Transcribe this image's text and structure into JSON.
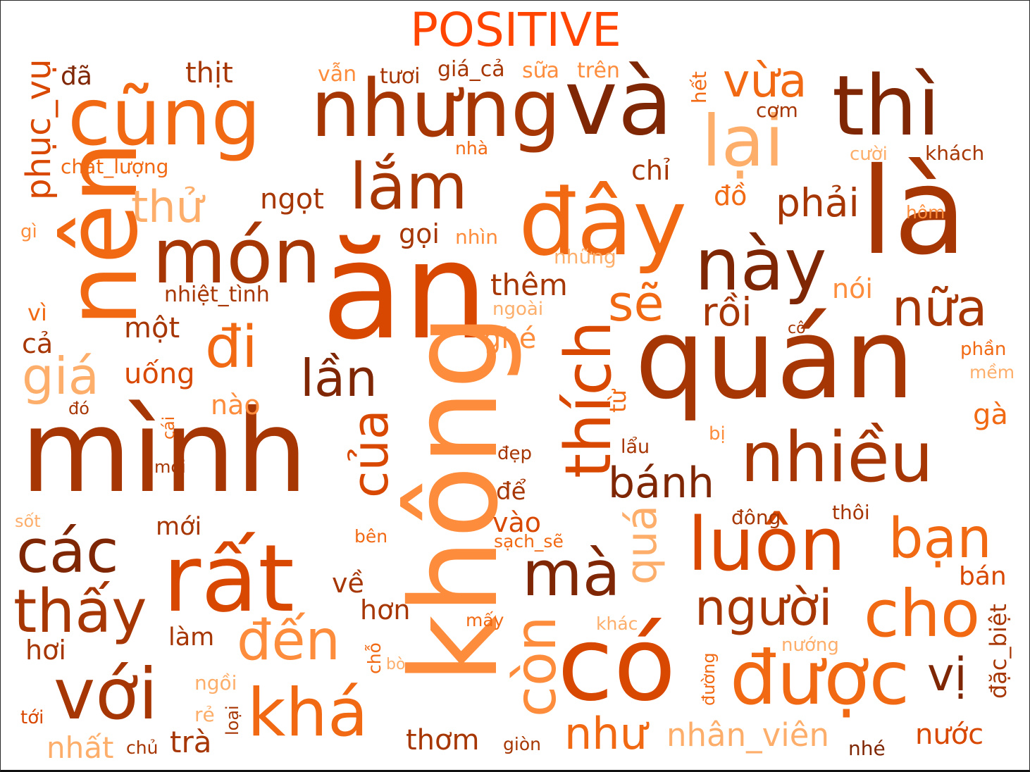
{
  "title": "POSITIVE",
  "palette": [
    "#7f2704",
    "#a63603",
    "#d94801",
    "#f16913",
    "#fd8d3c",
    "#fdae6b"
  ],
  "words": [
    "ăn",
    "quán",
    "mình",
    "không",
    "và",
    "là",
    "có",
    "thì",
    "cũng",
    "nhưng",
    "nên",
    "rất",
    "món",
    "đây",
    "được",
    "nhiều",
    "luôn",
    "này",
    "lại",
    "với",
    "thích",
    "khá",
    "cho",
    "các",
    "thấy",
    "lắm",
    "người",
    "đến",
    "đi",
    "còn",
    "bạn",
    "mà",
    "của",
    "lần",
    "nữa",
    "vừa",
    "giá",
    "sẽ",
    "bánh",
    "rồi",
    "như",
    "thử",
    "phải",
    "quá",
    "nhân_viên",
    "phục_vụ",
    "trà",
    "thêm",
    "nhất",
    "thơm",
    "vị",
    "ngọt",
    "chỉ",
    "đồ",
    "gọi",
    "uống",
    "nói",
    "một",
    "hơn",
    "đã",
    "thịt",
    "nào",
    "vào",
    "mới",
    "làm",
    "hơi",
    "nước",
    "ghé",
    "từ",
    "cả",
    "vì",
    "đặc_biệt",
    "bán",
    "gà",
    "về",
    "để",
    "cơm",
    "sữa",
    "trên",
    "giá_cả",
    "chất_lượng",
    "nhiệt_tình",
    "nhìn",
    "những",
    "sạch_sẽ",
    "ngoài",
    "vẫn",
    "tươi",
    "nhà",
    "cười",
    "khách",
    "hôm",
    "phần",
    "mềm",
    "hết",
    "cô",
    "lẩu",
    "bị",
    "đẹp",
    "đông",
    "thôi",
    "bên",
    "mấy",
    "khác",
    "nướng",
    "đường",
    "chỗ",
    "bò",
    "ngồi",
    "rẻ",
    "loại",
    "giòn",
    "nhé",
    "chủ",
    "tới",
    "sốt",
    "mọi",
    "cái",
    "đó",
    "gì"
  ]
}
